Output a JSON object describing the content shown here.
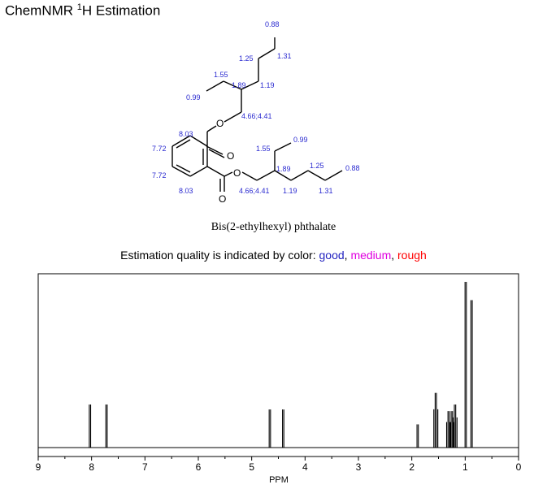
{
  "header": {
    "title_prefix": "ChemNMR ",
    "title_sup": "1",
    "title_suffix": "H Estimation"
  },
  "compound_name": "Bis(2-ethylhexyl) phthalate",
  "quality": {
    "prefix": "Estimation quality is indicated by color: ",
    "good": "good",
    "sep1": ", ",
    "medium": "medium",
    "sep2": ", ",
    "rough": "rough",
    "colors": {
      "good": "#1f1fbf",
      "medium": "#e000e0",
      "rough": "#ff0000"
    }
  },
  "structure": {
    "atoms": {
      "o_ester_top": "O",
      "o_carbonyl_top": "O",
      "o_ester_bottom": "O",
      "o_carbonyl_bottom": "O"
    },
    "shifts": {
      "top_ch3": "0.88",
      "top_ch2_a": "1.25",
      "top_ch2_b": "1.31",
      "top_ethyl_ch2": "1.55",
      "top_ch": "1.89",
      "top_ch2_c": "1.19",
      "top_ethyl_ch3": "0.99",
      "top_och2": "4.66;4.41",
      "aromatic_h_top": "8.03",
      "aromatic_h_upper_left": "7.72",
      "aromatic_h_lower_left": "7.72",
      "aromatic_h_bottom": "8.03",
      "bottom_ethyl_ch3": "0.99",
      "bottom_ethyl_ch2": "1.55",
      "bottom_ch": "1.89",
      "bottom_ch2_a": "1.25",
      "bottom_ch3": "0.88",
      "bottom_och2": "4.66;4.41",
      "bottom_ch2_c": "1.19",
      "bottom_ch2_b": "1.31"
    }
  },
  "chart_data": {
    "type": "line",
    "title": "",
    "xlabel": "PPM",
    "ylabel": "",
    "xlim": [
      9,
      0
    ],
    "x_reversed": true,
    "xticks": [
      9,
      8,
      7,
      6,
      5,
      4,
      3,
      2,
      1,
      0
    ],
    "peaks": [
      {
        "shift": 8.03,
        "multiplicity": "d",
        "rel_height": 0.26,
        "count": 2
      },
      {
        "shift": 7.72,
        "multiplicity": "d",
        "rel_height": 0.26,
        "count": 2
      },
      {
        "shift": 4.66,
        "multiplicity": "d",
        "rel_height": 0.23,
        "count": 2
      },
      {
        "shift": 4.41,
        "multiplicity": "d",
        "rel_height": 0.23,
        "count": 2
      },
      {
        "shift": 1.89,
        "multiplicity": "m",
        "rel_height": 0.14,
        "count": 2
      },
      {
        "shift": 1.55,
        "multiplicity": "m",
        "rel_height": 0.33,
        "count": 4
      },
      {
        "shift": 1.31,
        "multiplicity": "m",
        "rel_height": 0.22,
        "count": 4
      },
      {
        "shift": 1.25,
        "multiplicity": "m",
        "rel_height": 0.22,
        "count": 4
      },
      {
        "shift": 1.19,
        "multiplicity": "m",
        "rel_height": 0.26,
        "count": 4
      },
      {
        "shift": 0.99,
        "multiplicity": "t",
        "rel_height": 1.0,
        "count": 2
      },
      {
        "shift": 0.88,
        "multiplicity": "t",
        "rel_height": 0.89,
        "count": 2
      }
    ]
  }
}
